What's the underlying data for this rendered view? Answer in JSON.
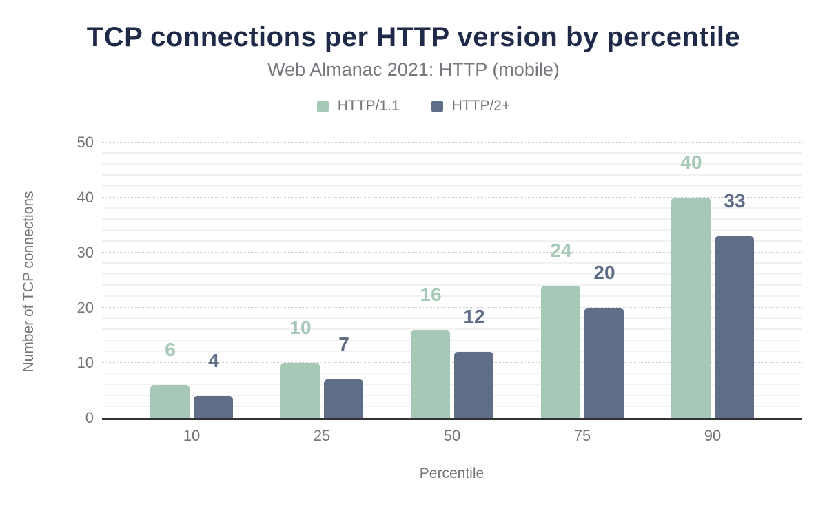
{
  "chart_data": {
    "type": "bar",
    "title": "TCP connections per HTTP version by percentile",
    "subtitle": "Web Almanac 2021: HTTP (mobile)",
    "categories": [
      "10",
      "25",
      "50",
      "75",
      "90"
    ],
    "series": [
      {
        "name": "HTTP/1.1",
        "color": "#a6c8b7",
        "values": [
          6,
          10,
          16,
          24,
          40
        ]
      },
      {
        "name": "HTTP/2+",
        "color": "#5f6e86",
        "values": [
          4,
          7,
          12,
          20,
          33
        ]
      }
    ],
    "xlabel": "Percentile",
    "ylabel": "Number of TCP connections",
    "ylim": [
      0,
      50
    ],
    "yticks": [
      0,
      10,
      20,
      30,
      40,
      50
    ],
    "minor_grid_step": 2,
    "grid": true,
    "legend_position": "top",
    "data_labels": true
  },
  "colors": {
    "title": "#1e2a47",
    "subtitle": "#75787d",
    "axis_text": "#757575",
    "axis_line": "#333333",
    "grid_major": "#cccccc",
    "grid_minor": "#f2f2f2",
    "background": "#ffffff"
  }
}
